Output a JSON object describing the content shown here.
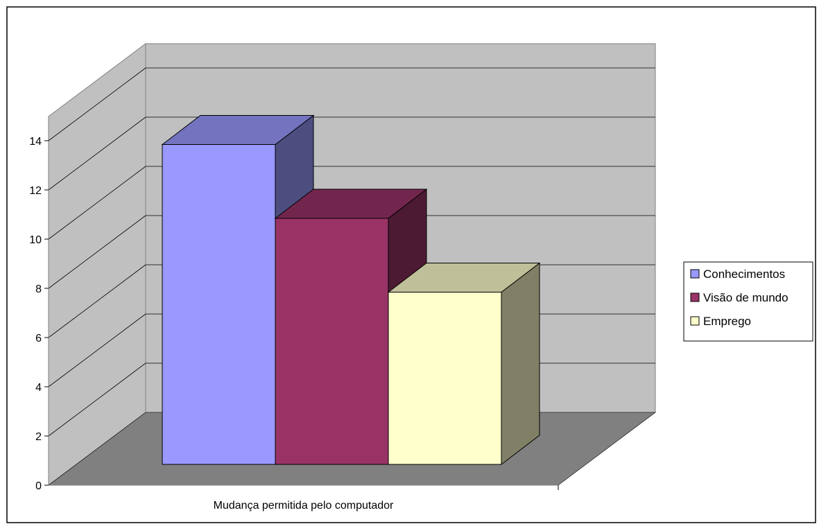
{
  "chart_data": {
    "type": "bar",
    "title": "",
    "xlabel": "",
    "ylabel": "",
    "categories": [
      "Mudança permitida pelo computador"
    ],
    "series": [
      {
        "name": "Conhecimentos",
        "values": [
          13
        ],
        "color": "#9999FF"
      },
      {
        "name": "Visão de mundo",
        "values": [
          10
        ],
        "color": "#993366"
      },
      {
        "name": "Emprego",
        "values": [
          7
        ],
        "color": "#FFFFCC"
      }
    ],
    "ylim": [
      0,
      14
    ],
    "yticks": [
      0,
      2,
      4,
      6,
      8,
      10,
      12,
      14
    ],
    "grid": true,
    "legend_position": "right",
    "colors": {
      "wall": "#C0C0C0",
      "floor": "#808080",
      "border": "#000000"
    }
  }
}
